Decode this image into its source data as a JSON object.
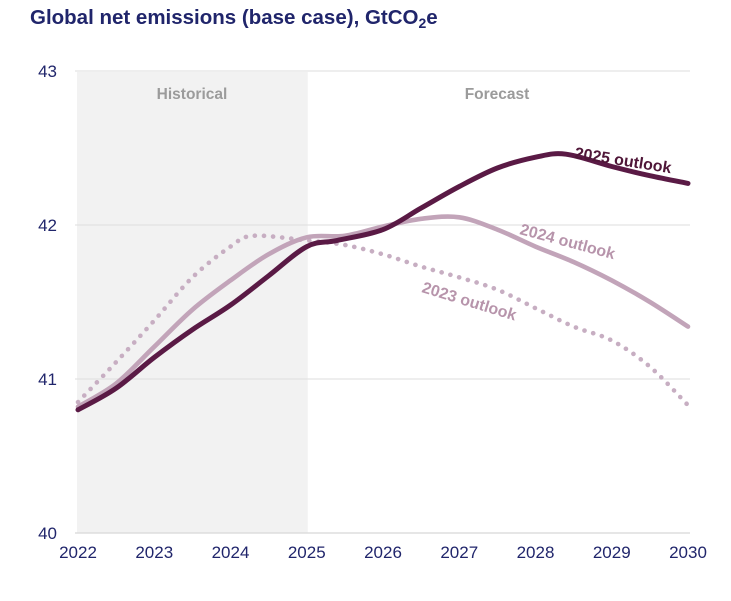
{
  "title": {
    "prefix": "Global net emissions (base case), GtCO",
    "sub": "2",
    "suffix": "e"
  },
  "region_labels": {
    "historical": "Historical",
    "forecast": "Forecast"
  },
  "colors": {
    "title_text": "#20256b",
    "axis_text": "#20256b",
    "region_text": "#9b9b9b",
    "historical_band": "#f2f2f2",
    "gridline": "#e3e3e3",
    "baseline": "#d8d8d8",
    "outlook_2025_line": "#5a1a45",
    "outlook_2025_label": "#4f1638",
    "outlook_2024_line": "#c2a4b9",
    "outlook_2024_label": "#b794ab",
    "outlook_2023_line": "#c7aec2",
    "outlook_2023_label": "#b794ab"
  },
  "chart_data": {
    "type": "line",
    "title": "Global net emissions (base case), GtCO2e",
    "xlabel": "",
    "ylabel": "GtCO2e",
    "xlim": [
      2022,
      2030
    ],
    "ylim": [
      40,
      43
    ],
    "x_ticks": [
      "2022",
      "2023",
      "2024",
      "2025",
      "2026",
      "2027",
      "2028",
      "2029",
      "2030"
    ],
    "y_ticks": [
      "40",
      "41",
      "42",
      "43"
    ],
    "y_tick_values": [
      40,
      41,
      42,
      43
    ],
    "grid": "horizontal",
    "legend_position": "inline-rotated-labels",
    "historical_band_x": [
      2022,
      2025
    ],
    "annotations": [
      "Historical",
      "Forecast"
    ],
    "series": [
      {
        "name": "2025 outlook",
        "style": "solid",
        "color": "#5a1a45",
        "label_color": "#4f1638",
        "x": [
          2022,
          2022.5,
          2023,
          2023.5,
          2024,
          2024.5,
          2025,
          2025.4,
          2026,
          2026.5,
          2027,
          2027.5,
          2028,
          2028.4,
          2029,
          2029.5,
          2030
        ],
        "y": [
          40.8,
          40.94,
          41.14,
          41.32,
          41.48,
          41.67,
          41.86,
          41.9,
          41.97,
          42.11,
          42.25,
          42.37,
          42.44,
          42.46,
          42.38,
          42.32,
          42.27
        ]
      },
      {
        "name": "2024 outlook",
        "style": "solid",
        "color": "#c2a4b9",
        "label_color": "#b794ab",
        "x": [
          2022,
          2022.5,
          2023,
          2023.5,
          2024,
          2024.5,
          2025,
          2025.5,
          2026,
          2026.5,
          2027,
          2027.5,
          2028,
          2028.5,
          2029,
          2029.5,
          2030
        ],
        "y": [
          40.82,
          40.97,
          41.21,
          41.45,
          41.64,
          41.81,
          41.92,
          41.93,
          41.99,
          42.04,
          42.05,
          41.97,
          41.86,
          41.76,
          41.64,
          41.5,
          41.34
        ]
      },
      {
        "name": "2023 outlook",
        "style": "dotted",
        "color": "#c7aec2",
        "label_color": "#b794ab",
        "x": [
          2022,
          2022.5,
          2023,
          2023.5,
          2024,
          2024.3,
          2025,
          2025.5,
          2026,
          2026.5,
          2027,
          2027.5,
          2028,
          2028.5,
          2029,
          2029.5,
          2030
        ],
        "y": [
          40.85,
          41.11,
          41.38,
          41.66,
          41.86,
          41.93,
          41.9,
          41.87,
          41.81,
          41.73,
          41.66,
          41.58,
          41.46,
          41.34,
          41.25,
          41.08,
          40.83
        ]
      }
    ]
  }
}
